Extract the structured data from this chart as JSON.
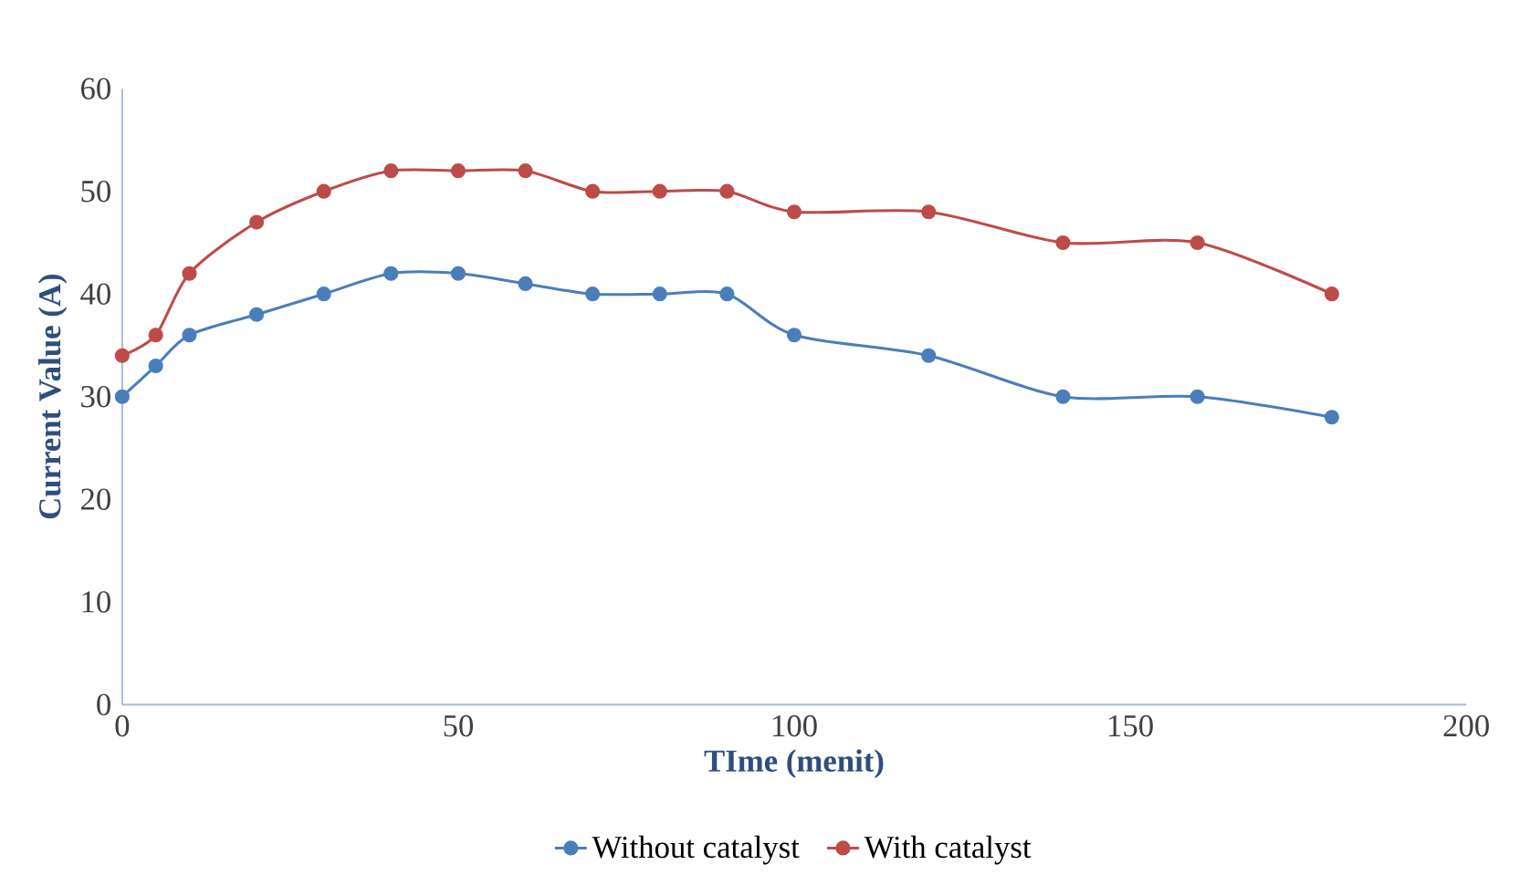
{
  "chart_data": {
    "type": "line",
    "xlabel": "TIme (menit)",
    "ylabel": "Current Value (A)",
    "x": [
      0,
      5,
      10,
      20,
      30,
      40,
      50,
      60,
      70,
      80,
      90,
      100,
      120,
      140,
      160,
      180
    ],
    "series": [
      {
        "name": "Without catalyst",
        "color": "#4a7ebb",
        "values": [
          30,
          33,
          36,
          38,
          40,
          42,
          42,
          41,
          40,
          40,
          40,
          36,
          34,
          30,
          30,
          28
        ]
      },
      {
        "name": "With catalyst",
        "color": "#be4b48",
        "values": [
          34,
          36,
          42,
          47,
          50,
          52,
          52,
          52,
          50,
          50,
          50,
          48,
          48,
          45,
          45,
          40
        ]
      }
    ],
    "xlim": [
      0,
      200
    ],
    "ylim": [
      0,
      60
    ],
    "xticks": [
      0,
      50,
      100,
      150,
      200
    ],
    "yticks": [
      0,
      10,
      20,
      30,
      40,
      50,
      60
    ],
    "grid": false,
    "legend": "bottom",
    "marker": "circle",
    "line_style": "solid"
  }
}
